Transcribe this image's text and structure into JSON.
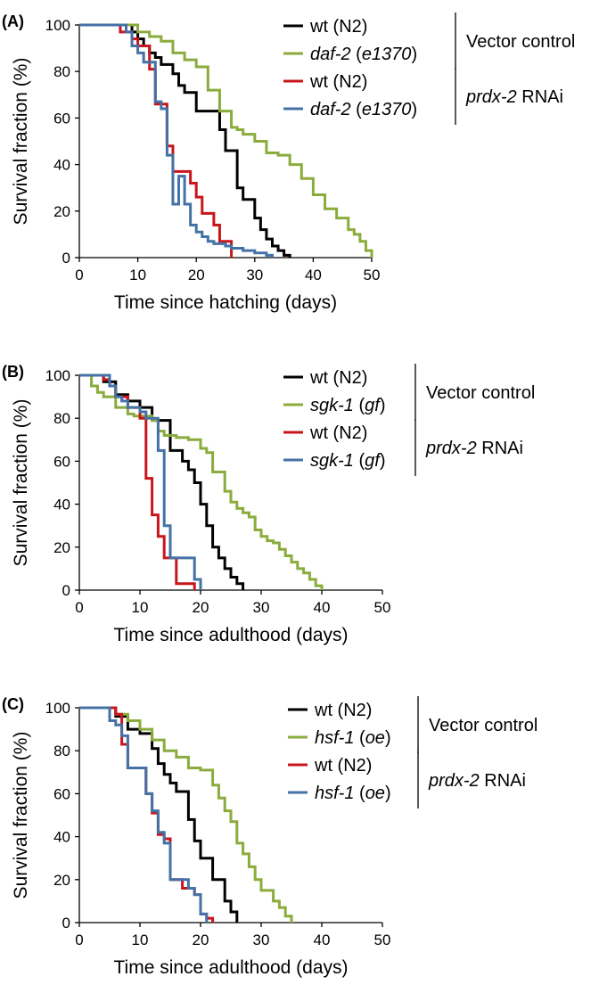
{
  "colors": {
    "wt": "#000000",
    "mutant_vector": "#8bac3c",
    "wt_rnai": "#c8161d",
    "mutant_rnai": "#4472a6"
  },
  "chart_data": [
    {
      "type": "line",
      "subtype": "step",
      "panel_label": "(A)",
      "xlabel": "Time since hatching (days)",
      "ylabel": "Survival fraction (%)",
      "xlim": [
        0,
        50
      ],
      "ylim": [
        0,
        100
      ],
      "xticks": [
        "0",
        "10",
        "20",
        "30",
        "40",
        "50"
      ],
      "yticks": [
        "0",
        "20",
        "40",
        "60",
        "80",
        "100"
      ],
      "grid": false,
      "legend_position": "top-right",
      "legend_groups": [
        {
          "label": "Vector control",
          "label_rnai": ""
        },
        {
          "label": "",
          "label_gene": "prdx-2",
          "label_rest": " RNAi"
        }
      ],
      "series": [
        {
          "group": 0,
          "name_plain": "wt (N2)",
          "name_gene": "",
          "name_allele": "",
          "color": "#000000",
          "x": [
            0,
            7,
            9,
            10,
            11,
            12,
            13,
            14,
            16,
            17,
            18,
            20,
            22,
            24,
            25,
            26,
            27,
            28,
            30,
            31,
            32,
            33,
            34,
            35,
            36
          ],
          "y": [
            100,
            100,
            97,
            94,
            91,
            88,
            86,
            83,
            79,
            74,
            71,
            63,
            63,
            55,
            46,
            46,
            30,
            25,
            17,
            12,
            8,
            5,
            3,
            1,
            0
          ]
        },
        {
          "group": 0,
          "name_plain": "",
          "name_gene": "daf-2",
          "name_allele": "e1370",
          "color": "#8bac3c",
          "x": [
            0,
            9,
            10,
            12,
            14,
            16,
            18,
            20,
            22,
            24,
            26,
            27,
            28,
            30,
            32,
            34,
            36,
            38,
            40,
            42,
            44,
            46,
            47,
            48,
            49,
            50
          ],
          "y": [
            100,
            100,
            97,
            95,
            93,
            88,
            85,
            82,
            72,
            63,
            56,
            55,
            53,
            50,
            45,
            44,
            40,
            34,
            27,
            21,
            17,
            12,
            10,
            7,
            3,
            0
          ]
        },
        {
          "group": 1,
          "name_plain": "wt (N2)",
          "name_gene": "",
          "name_allele": "",
          "color": "#c8161d",
          "x": [
            0,
            6,
            7,
            9,
            10,
            12,
            13,
            15,
            16,
            17,
            19,
            20,
            21,
            23,
            24,
            26
          ],
          "y": [
            100,
            100,
            97,
            94,
            91,
            81,
            66,
            48,
            37,
            37,
            32,
            26,
            19,
            14,
            7,
            0
          ]
        },
        {
          "group": 1,
          "name_plain": "",
          "name_gene": "daf-2",
          "name_allele": "e1370",
          "color": "#4472a6",
          "x": [
            0,
            7,
            8,
            9,
            10,
            11,
            13,
            14,
            15,
            16,
            17,
            18,
            19,
            20,
            21,
            22,
            23,
            24,
            25,
            26,
            28,
            30,
            31,
            32,
            33
          ],
          "y": [
            100,
            100,
            97,
            91,
            88,
            84,
            67,
            64,
            44,
            23,
            35,
            23,
            14,
            11,
            9,
            7,
            6,
            6,
            5,
            4,
            3,
            2,
            2,
            1,
            0
          ]
        }
      ]
    },
    {
      "type": "line",
      "subtype": "step",
      "panel_label": "(B)",
      "xlabel": "Time since adulthood (days)",
      "ylabel": "Survival fraction (%)",
      "xlim": [
        0,
        50
      ],
      "ylim": [
        0,
        100
      ],
      "xticks": [
        "0",
        "10",
        "20",
        "30",
        "40",
        "50"
      ],
      "yticks": [
        "0",
        "20",
        "40",
        "60",
        "80",
        "100"
      ],
      "grid": false,
      "legend_position": "top-right",
      "legend_groups": [
        {
          "label": "Vector control",
          "label_rnai": ""
        },
        {
          "label": "",
          "label_gene": "prdx-2",
          "label_rest": " RNAi"
        }
      ],
      "series": [
        {
          "group": 0,
          "name_plain": "wt (N2)",
          "name_gene": "",
          "name_allele": "",
          "color": "#000000",
          "x": [
            0,
            3,
            4,
            6,
            8,
            10,
            12,
            14,
            15,
            16,
            17,
            18,
            19,
            20,
            21,
            22,
            23,
            24,
            25,
            26,
            27
          ],
          "y": [
            100,
            100,
            97,
            91,
            88,
            85,
            79,
            79,
            65,
            65,
            60,
            56,
            50,
            40,
            30,
            20,
            15,
            10,
            6,
            3,
            0
          ]
        },
        {
          "group": 0,
          "name_plain": "",
          "name_gene": "sgk-1",
          "name_allele": "gf",
          "color": "#8bac3c",
          "x": [
            0,
            1,
            2,
            3,
            4,
            6,
            8,
            9,
            10,
            12,
            13,
            14,
            16,
            18,
            20,
            21,
            22,
            24,
            25,
            26,
            27,
            28,
            29,
            30,
            31,
            32,
            33,
            34,
            35,
            36,
            37,
            38,
            39,
            40
          ],
          "y": [
            100,
            100,
            95,
            92,
            90,
            85,
            82,
            81,
            81,
            79,
            74,
            72,
            71,
            70,
            66,
            64,
            55,
            46,
            41,
            38,
            36,
            34,
            28,
            25,
            23,
            22,
            19,
            16,
            13,
            10,
            8,
            5,
            2,
            0
          ]
        },
        {
          "group": 1,
          "name_plain": "wt (N2)",
          "name_gene": "",
          "name_allele": "",
          "color": "#c8161d",
          "x": [
            0,
            3,
            4,
            5,
            6,
            8,
            10,
            11,
            12,
            13,
            14,
            15,
            16,
            17,
            18,
            19
          ],
          "y": [
            100,
            100,
            98,
            95,
            90,
            85,
            80,
            52,
            35,
            25,
            15,
            15,
            3,
            3,
            3,
            0
          ]
        },
        {
          "group": 1,
          "name_plain": "",
          "name_gene": "sgk-1",
          "name_allele": "gf",
          "color": "#4472a6",
          "x": [
            0,
            3,
            5,
            6,
            7,
            8,
            10,
            11,
            13,
            14,
            15,
            16,
            17,
            18,
            19,
            20
          ],
          "y": [
            100,
            100,
            95,
            90,
            88,
            85,
            83,
            80,
            65,
            30,
            15,
            15,
            15,
            15,
            5,
            0
          ]
        }
      ]
    },
    {
      "type": "line",
      "subtype": "step",
      "panel_label": "(C)",
      "xlabel": "Time since adulthood (days)",
      "ylabel": "Survival fraction (%)",
      "xlim": [
        0,
        50
      ],
      "ylim": [
        0,
        100
      ],
      "xticks": [
        "0",
        "10",
        "20",
        "30",
        "40",
        "50"
      ],
      "yticks": [
        "0",
        "20",
        "40",
        "60",
        "80",
        "100"
      ],
      "grid": false,
      "legend_position": "top-right",
      "legend_groups": [
        {
          "label": "Vector control",
          "label_rnai": ""
        },
        {
          "label": "",
          "label_gene": "prdx-2",
          "label_rest": " RNAi"
        }
      ],
      "series": [
        {
          "group": 0,
          "name_plain": "wt (N2)",
          "name_gene": "",
          "name_allele": "",
          "color": "#000000",
          "x": [
            0,
            4,
            6,
            8,
            10,
            12,
            13,
            14,
            15,
            16,
            18,
            19,
            20,
            22,
            24,
            25,
            26
          ],
          "y": [
            100,
            100,
            96,
            90,
            88,
            81,
            74,
            69,
            65,
            61,
            48,
            38,
            30,
            20,
            10,
            5,
            0
          ]
        },
        {
          "group": 0,
          "name_plain": "",
          "name_gene": "hsf-1",
          "name_allele": "oe",
          "color": "#8bac3c",
          "x": [
            0,
            5,
            6,
            8,
            10,
            12,
            14,
            16,
            18,
            20,
            22,
            23,
            24,
            25,
            26,
            27,
            28,
            29,
            30,
            32,
            33,
            34,
            35
          ],
          "y": [
            100,
            100,
            97,
            94,
            90,
            85,
            80,
            77,
            72,
            71,
            64,
            58,
            52,
            47,
            37,
            32,
            26,
            20,
            15,
            10,
            7,
            3,
            0
          ]
        },
        {
          "group": 1,
          "name_plain": "wt (N2)",
          "name_gene": "",
          "name_allele": "",
          "color": "#c8161d",
          "x": [
            0,
            4,
            6,
            7,
            8,
            10,
            11,
            12,
            13,
            14,
            15,
            16,
            17,
            18,
            19,
            20,
            21,
            22
          ],
          "y": [
            100,
            100,
            97,
            83,
            72,
            72,
            60,
            51,
            41,
            39,
            20,
            20,
            16,
            16,
            13,
            4,
            2,
            0
          ]
        },
        {
          "group": 1,
          "name_plain": "",
          "name_gene": "hsf-1",
          "name_allele": "oe",
          "color": "#4472a6",
          "x": [
            0,
            3,
            5,
            6,
            7,
            8,
            10,
            11,
            12,
            13,
            14,
            15,
            17,
            18,
            19,
            20,
            21
          ],
          "y": [
            100,
            100,
            94,
            92,
            87,
            72,
            72,
            60,
            52,
            42,
            37,
            20,
            20,
            16,
            13,
            4,
            0
          ]
        }
      ]
    }
  ]
}
